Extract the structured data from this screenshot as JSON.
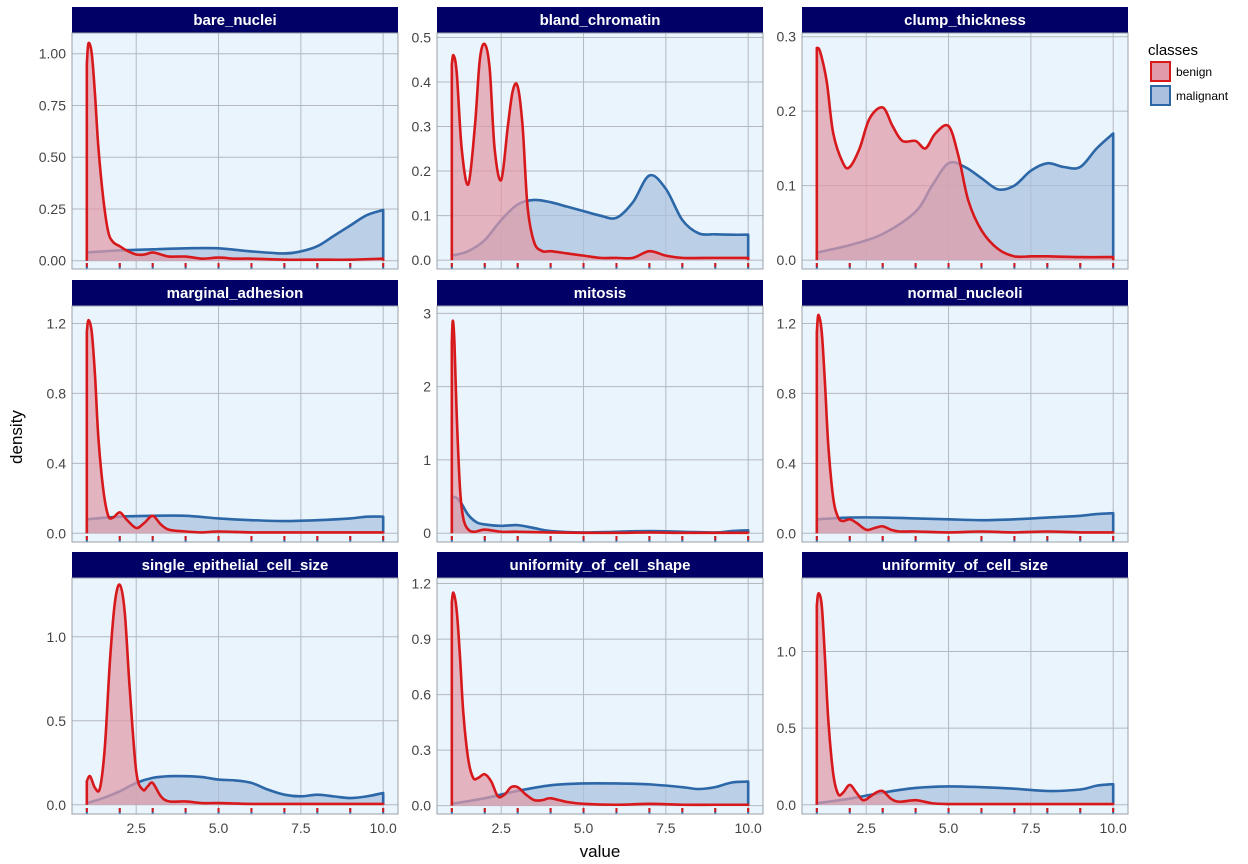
{
  "chart_data": {
    "type": "area",
    "layout": "facet-grid 3x3",
    "xlabel": "value",
    "ylabel": "density",
    "xlim": [
      0.55,
      10.45
    ],
    "x_ticks": [
      2.5,
      5.0,
      7.5,
      10.0
    ],
    "x_tick_labels": [
      "2.5",
      "5.0",
      "7.5",
      "10.0"
    ],
    "x_tick_labels_shown_on_bottom_row_only": true,
    "rug_marks": [
      1,
      2,
      3,
      4,
      5,
      6,
      7,
      8,
      9,
      10
    ],
    "grid": true,
    "legend": {
      "title": "classes",
      "placement": "right-top",
      "entries": [
        {
          "name": "benign",
          "line": "#d7191c",
          "fill": "#e19aa8"
        },
        {
          "name": "malignant",
          "line": "#2c67a8",
          "fill": "#a9c1de"
        }
      ]
    },
    "colors": {
      "panel_background": "#eaf4fd",
      "strip_background": "#000066",
      "strip_text": "#ffffff",
      "grid": "#b4b8bf"
    },
    "panels": [
      {
        "title": "bare_nuclei",
        "ylim": [
          -0.04,
          1.1
        ],
        "y_ticks": [
          0,
          0.25,
          0.5,
          0.75,
          1.0
        ],
        "y_tick_labels": [
          "0.00",
          "0.25",
          "0.50",
          "0.75",
          "1.00"
        ],
        "series": [
          {
            "name": "benign",
            "x": [
              1,
              1.05,
              1.15,
              1.25,
              1.35,
              1.5,
              1.65,
              1.8,
              2,
              2.2,
              2.5,
              2.75,
              3,
              3.25,
              3.5,
              4,
              4.5,
              5,
              5.5,
              6,
              7,
              8,
              9,
              10
            ],
            "y": [
              0.95,
              1.05,
              1.0,
              0.8,
              0.55,
              0.3,
              0.14,
              0.09,
              0.07,
              0.05,
              0.03,
              0.03,
              0.04,
              0.03,
              0.02,
              0.02,
              0.01,
              0.015,
              0.01,
              0.01,
              0.005,
              0.005,
              0.005,
              0.01
            ]
          },
          {
            "name": "malignant",
            "x": [
              1,
              2,
              3,
              4,
              5,
              6,
              7,
              7.5,
              8,
              8.5,
              9,
              9.5,
              10
            ],
            "y": [
              0.04,
              0.05,
              0.055,
              0.06,
              0.06,
              0.045,
              0.035,
              0.045,
              0.07,
              0.12,
              0.17,
              0.22,
              0.245
            ]
          }
        ]
      },
      {
        "title": "bland_chromatin",
        "ylim": [
          -0.02,
          0.51
        ],
        "y_ticks": [
          0,
          0.1,
          0.2,
          0.3,
          0.4,
          0.5
        ],
        "y_tick_labels": [
          "0.0",
          "0.1",
          "0.2",
          "0.3",
          "0.4",
          "0.5"
        ],
        "series": [
          {
            "name": "benign",
            "x": [
              1,
              1.05,
              1.15,
              1.3,
              1.5,
              1.7,
              1.85,
              2,
              2.15,
              2.3,
              2.5,
              2.7,
              2.85,
              3,
              3.15,
              3.3,
              3.5,
              3.75,
              4,
              4.5,
              5,
              5.5,
              6,
              6.5,
              7,
              7.5,
              8,
              9,
              10
            ],
            "y": [
              0.44,
              0.46,
              0.42,
              0.25,
              0.17,
              0.3,
              0.45,
              0.485,
              0.43,
              0.25,
              0.18,
              0.3,
              0.38,
              0.39,
              0.3,
              0.12,
              0.04,
              0.02,
              0.02,
              0.015,
              0.01,
              0.005,
              0.005,
              0.005,
              0.02,
              0.01,
              0.005,
              0.005,
              0.005
            ]
          },
          {
            "name": "malignant",
            "x": [
              1,
              1.5,
              2,
              2.5,
              3,
              3.5,
              4,
              4.5,
              5,
              5.5,
              6,
              6.5,
              7,
              7.5,
              8,
              8.5,
              9,
              9.5,
              10
            ],
            "y": [
              0.01,
              0.02,
              0.045,
              0.09,
              0.125,
              0.135,
              0.13,
              0.12,
              0.11,
              0.1,
              0.095,
              0.13,
              0.19,
              0.16,
              0.09,
              0.06,
              0.058,
              0.057,
              0.057
            ]
          }
        ]
      },
      {
        "title": "clump_thickness",
        "ylim": [
          -0.012,
          0.305
        ],
        "y_ticks": [
          0,
          0.1,
          0.2,
          0.3
        ],
        "y_tick_labels": [
          "0.0",
          "0.1",
          "0.2",
          "0.3"
        ],
        "series": [
          {
            "name": "benign",
            "x": [
              1,
              1.1,
              1.3,
              1.5,
              1.8,
              2,
              2.3,
              2.6,
              3,
              3.3,
              3.6,
              4,
              4.3,
              4.6,
              5,
              5.3,
              5.6,
              6,
              6.5,
              7,
              7.5,
              8,
              9,
              10
            ],
            "y": [
              0.285,
              0.28,
              0.24,
              0.17,
              0.13,
              0.125,
              0.15,
              0.19,
              0.205,
              0.18,
              0.16,
              0.16,
              0.15,
              0.17,
              0.18,
              0.14,
              0.08,
              0.04,
              0.015,
              0.005,
              0.005,
              0.005,
              0.004,
              0.004
            ]
          },
          {
            "name": "malignant",
            "x": [
              1,
              2,
              3,
              4,
              4.5,
              5,
              5.5,
              6,
              6.5,
              7,
              7.5,
              8,
              8.5,
              9,
              9.5,
              10
            ],
            "y": [
              0.01,
              0.02,
              0.035,
              0.065,
              0.1,
              0.13,
              0.125,
              0.11,
              0.095,
              0.1,
              0.12,
              0.13,
              0.125,
              0.125,
              0.15,
              0.17
            ]
          }
        ]
      },
      {
        "title": "marginal_adhesion",
        "ylim": [
          -0.05,
          1.3
        ],
        "y_ticks": [
          0,
          0.4,
          0.8,
          1.2
        ],
        "y_tick_labels": [
          "0.0",
          "0.4",
          "0.8",
          "1.2"
        ],
        "series": [
          {
            "name": "benign",
            "x": [
              1,
              1.05,
              1.15,
              1.25,
              1.35,
              1.5,
              1.65,
              1.8,
              2,
              2.2,
              2.5,
              2.75,
              3,
              3.25,
              3.5,
              4,
              4.5,
              5,
              6,
              7,
              8,
              9,
              10
            ],
            "y": [
              1.15,
              1.22,
              1.15,
              0.9,
              0.55,
              0.25,
              0.1,
              0.09,
              0.12,
              0.08,
              0.03,
              0.06,
              0.1,
              0.05,
              0.02,
              0.01,
              0.005,
              0.01,
              0.005,
              0.005,
              0.005,
              0.005,
              0.005
            ]
          },
          {
            "name": "malignant",
            "x": [
              1,
              2,
              3,
              4,
              5,
              6,
              7,
              8,
              9,
              9.5,
              10
            ],
            "y": [
              0.08,
              0.095,
              0.1,
              0.1,
              0.085,
              0.075,
              0.07,
              0.075,
              0.085,
              0.095,
              0.095
            ]
          }
        ]
      },
      {
        "title": "mitosis",
        "ylim": [
          -0.12,
          3.1
        ],
        "y_ticks": [
          0,
          1,
          2,
          3
        ],
        "y_tick_labels": [
          "0",
          "1",
          "2",
          "3"
        ],
        "series": [
          {
            "name": "benign",
            "x": [
              1,
              1.03,
              1.08,
              1.15,
              1.25,
              1.35,
              1.5,
              1.7,
              2,
              2.5,
              3,
              4,
              5,
              6,
              7,
              8,
              9,
              10
            ],
            "y": [
              2.6,
              2.9,
              2.6,
              1.6,
              0.6,
              0.2,
              0.05,
              0.02,
              0.05,
              0.02,
              0.02,
              0.01,
              0.005,
              0.005,
              0.01,
              0.005,
              0.005,
              0.005
            ]
          },
          {
            "name": "malignant",
            "x": [
              1,
              1.15,
              1.3,
              1.5,
              1.75,
              2,
              2.5,
              3,
              3.5,
              4,
              5,
              6,
              7,
              8,
              9,
              9.5,
              10
            ],
            "y": [
              0.5,
              0.48,
              0.4,
              0.25,
              0.15,
              0.12,
              0.1,
              0.11,
              0.07,
              0.03,
              0.01,
              0.02,
              0.03,
              0.02,
              0.01,
              0.03,
              0.04
            ]
          }
        ]
      },
      {
        "title": "normal_nucleoli",
        "ylim": [
          -0.05,
          1.3
        ],
        "y_ticks": [
          0,
          0.4,
          0.8,
          1.2
        ],
        "y_tick_labels": [
          "0.0",
          "0.4",
          "0.8",
          "1.2"
        ],
        "series": [
          {
            "name": "benign",
            "x": [
              1,
              1.05,
              1.15,
              1.25,
              1.35,
              1.5,
              1.65,
              1.8,
              2,
              2.2,
              2.5,
              2.75,
              3,
              3.25,
              3.5,
              4,
              5,
              6,
              7,
              8,
              9,
              10
            ],
            "y": [
              1.15,
              1.25,
              1.15,
              0.85,
              0.5,
              0.2,
              0.09,
              0.07,
              0.08,
              0.06,
              0.02,
              0.03,
              0.04,
              0.02,
              0.01,
              0.01,
              0.005,
              0.01,
              0.005,
              0.01,
              0.005,
              0.005
            ]
          },
          {
            "name": "malignant",
            "x": [
              1,
              2,
              3,
              4,
              5,
              6,
              7,
              8,
              9,
              9.5,
              10
            ],
            "y": [
              0.08,
              0.09,
              0.09,
              0.085,
              0.08,
              0.075,
              0.08,
              0.09,
              0.1,
              0.11,
              0.115
            ]
          }
        ]
      },
      {
        "title": "single_epithelial_cell_size",
        "ylim": [
          -0.055,
          1.35
        ],
        "y_ticks": [
          0,
          0.5,
          1.0
        ],
        "y_tick_labels": [
          "0.0",
          "0.5",
          "1.0"
        ],
        "series": [
          {
            "name": "benign",
            "x": [
              1,
              1.1,
              1.25,
              1.4,
              1.55,
              1.7,
              1.85,
              2,
              2.15,
              2.3,
              2.5,
              2.7,
              2.85,
              3,
              3.25,
              3.5,
              4,
              4.5,
              5,
              6,
              7,
              8,
              9,
              10
            ],
            "y": [
              0.14,
              0.17,
              0.1,
              0.1,
              0.35,
              0.85,
              1.2,
              1.31,
              1.15,
              0.7,
              0.2,
              0.09,
              0.11,
              0.13,
              0.05,
              0.02,
              0.02,
              0.01,
              0.01,
              0.005,
              0.005,
              0.005,
              0.005,
              0.005
            ]
          },
          {
            "name": "malignant",
            "x": [
              1,
              1.5,
              2,
              2.5,
              3,
              3.5,
              4,
              4.5,
              5,
              5.5,
              6,
              6.5,
              7,
              7.5,
              8,
              8.5,
              9,
              9.5,
              10
            ],
            "y": [
              0.01,
              0.04,
              0.08,
              0.13,
              0.16,
              0.17,
              0.17,
              0.165,
              0.15,
              0.145,
              0.13,
              0.09,
              0.06,
              0.05,
              0.06,
              0.05,
              0.04,
              0.05,
              0.07
            ]
          }
        ]
      },
      {
        "title": "uniformity_of_cell_shape",
        "ylim": [
          -0.045,
          1.23
        ],
        "y_ticks": [
          0,
          0.3,
          0.6,
          0.9,
          1.2
        ],
        "y_tick_labels": [
          "0.0",
          "0.3",
          "0.6",
          "0.9",
          "1.2"
        ],
        "series": [
          {
            "name": "benign",
            "x": [
              1,
              1.05,
              1.15,
              1.25,
              1.35,
              1.5,
              1.65,
              1.8,
              2,
              2.2,
              2.4,
              2.6,
              2.8,
              3,
              3.25,
              3.5,
              3.75,
              4,
              4.5,
              5,
              6,
              7,
              8,
              9,
              10
            ],
            "y": [
              1.1,
              1.15,
              1.05,
              0.8,
              0.5,
              0.25,
              0.15,
              0.15,
              0.17,
              0.13,
              0.05,
              0.06,
              0.1,
              0.1,
              0.06,
              0.03,
              0.03,
              0.04,
              0.02,
              0.01,
              0.005,
              0.01,
              0.005,
              0.005,
              0.005
            ]
          },
          {
            "name": "malignant",
            "x": [
              1,
              2,
              3,
              4,
              5,
              6,
              7,
              8,
              8.5,
              9,
              9.5,
              10
            ],
            "y": [
              0.01,
              0.04,
              0.08,
              0.11,
              0.12,
              0.12,
              0.115,
              0.1,
              0.09,
              0.1,
              0.125,
              0.13
            ]
          }
        ]
      },
      {
        "title": "uniformity_of_cell_size",
        "ylim": [
          -0.06,
          1.48
        ],
        "y_ticks": [
          0,
          0.5,
          1.0
        ],
        "y_tick_labels": [
          "0.0",
          "0.5",
          "1.0"
        ],
        "series": [
          {
            "name": "benign",
            "x": [
              1,
              1.05,
              1.15,
              1.25,
              1.35,
              1.5,
              1.65,
              1.8,
              2,
              2.2,
              2.4,
              2.6,
              2.8,
              3,
              3.25,
              3.5,
              4,
              4.5,
              5,
              6,
              7,
              8,
              9,
              10
            ],
            "y": [
              1.3,
              1.38,
              1.3,
              0.95,
              0.55,
              0.2,
              0.07,
              0.08,
              0.13,
              0.08,
              0.03,
              0.05,
              0.08,
              0.09,
              0.04,
              0.02,
              0.03,
              0.01,
              0.005,
              0.005,
              0.005,
              0.005,
              0.005,
              0.005
            ]
          },
          {
            "name": "malignant",
            "x": [
              1,
              2,
              3,
              4,
              5,
              6,
              7,
              8,
              9,
              9.5,
              10
            ],
            "y": [
              0.01,
              0.04,
              0.08,
              0.11,
              0.12,
              0.115,
              0.105,
              0.09,
              0.1,
              0.125,
              0.135
            ]
          }
        ]
      }
    ]
  }
}
